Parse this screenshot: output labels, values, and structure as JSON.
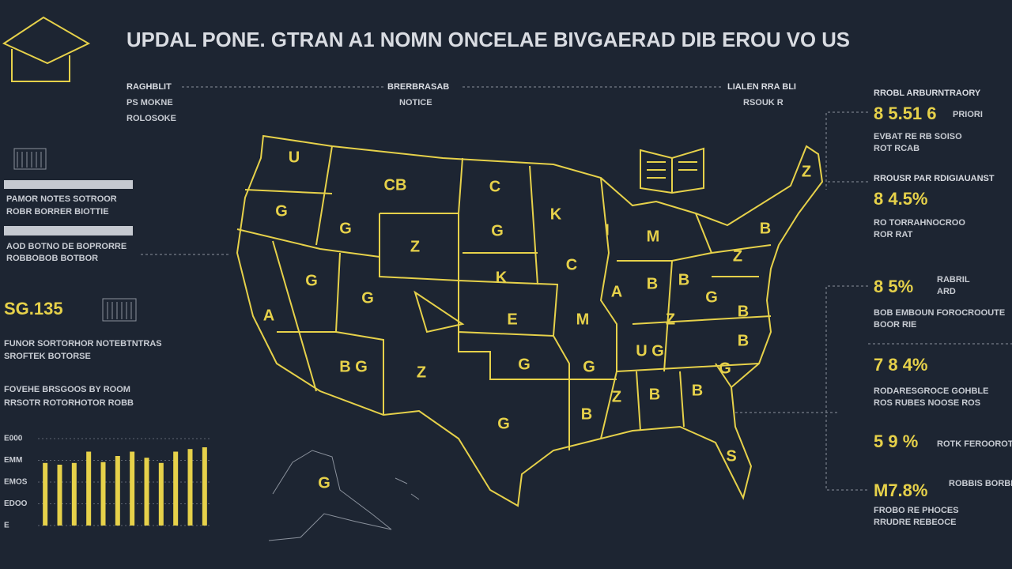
{
  "header": {
    "title": "UPDAL PONE. GTRAN A1 NOMN ONCELAE BIVGAERAD DIB EROU VO US"
  },
  "top_labels": [
    {
      "line1": "RAGHBLIT",
      "line2": "PS MOKNE",
      "line3": "ROLOSOKE"
    },
    {
      "line1": "BRERBRASAB",
      "line2": "NOTICE"
    },
    {
      "line1": "LIALEN RRA BLI",
      "line2": "RSOUK R"
    }
  ],
  "left_panel": {
    "row1_label": "PAMOR NOTES SOTROOR",
    "row1_sub": "ROBR BORRER BIOTTIE",
    "row2_label": "AOD BOTNO DE BOPRORRE",
    "row2_sub": "ROBBOBOB BOTBOR",
    "stat_value": "SG.135",
    "stat_line1": "FUNOR SORTORHOR NOTEBTNTRAS",
    "stat_line2": "SROFTEK BOTORSE",
    "note_line1": "FOVEHE BRSGOOS BY ROOM",
    "note_line2": "RRSOTR ROTORHOTOR ROBB"
  },
  "bar_chart": {
    "ylabels": [
      "E000",
      "EMM",
      "EMOS",
      "EDOO",
      "E"
    ],
    "ylim": [
      0,
      100
    ],
    "values": [
      72,
      70,
      72,
      85,
      73,
      80,
      85,
      78,
      72,
      85,
      88,
      90
    ]
  },
  "right_panel": [
    {
      "header": "RROBL ARBURNTRAORY",
      "value": "8 5.51 6",
      "side": "PRIORI",
      "sub1": "EVBAT RE RB SOISO",
      "sub2": "ROT RCAB"
    },
    {
      "header": "RROUSR PAR RDIGIAUANST",
      "value": "8 4.5%",
      "sub1": "RO TORRAHNOCROO",
      "sub2": "ROR RAT"
    },
    {
      "value": "8 5%",
      "side": "RABRIL",
      "side2": "ARD",
      "sub1": "BOB EMBOUN FOROCROOUTE",
      "sub2": "BOOR RIE"
    },
    {
      "value": "7 8 4%",
      "sub1": "RODARESGROCE GOHBLE",
      "sub2": "ROS RUBES NOOSE ROS"
    },
    {
      "value": "5 9 %",
      "side": "ROTK FEROOROTOS"
    },
    {
      "value": "M7.8%",
      "side": "ROBBIS BORBRANIE",
      "sub1": "FROBO RE PHOCES",
      "sub2": "RRUDRE REBEOCE"
    }
  ],
  "map": {
    "state_labels": [
      "U",
      "CB",
      "C",
      "G",
      "G",
      "Z",
      "G",
      "K",
      "I",
      "M",
      "C",
      "G",
      "K",
      "G",
      "A",
      "B",
      "B",
      "Z",
      "B",
      "Z",
      "A",
      "E",
      "M",
      "Z",
      "G",
      "B",
      "B",
      "U G",
      "B G",
      "Z",
      "G",
      "G",
      "G",
      "Z",
      "B",
      "B",
      "G",
      "B",
      "S",
      "G"
    ]
  }
}
